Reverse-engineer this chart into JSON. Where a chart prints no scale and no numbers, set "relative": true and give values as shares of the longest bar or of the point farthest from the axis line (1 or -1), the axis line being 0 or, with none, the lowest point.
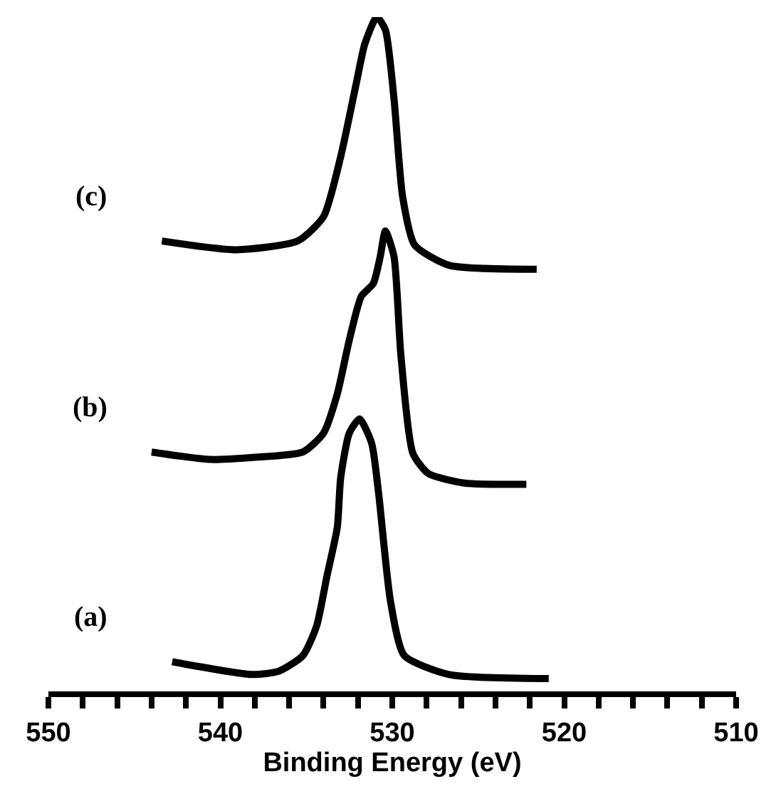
{
  "chart_data": {
    "type": "line",
    "relative": true,
    "xlabel": "Binding Energy (eV)",
    "xlim": [
      550,
      510
    ],
    "xticks": [
      550,
      {
        "value": 548,
        "label": null
      },
      {
        "value": 546,
        "label": null
      },
      {
        "value": 544,
        "label": null
      },
      {
        "value": 542,
        "label": null
      },
      540,
      {
        "value": 538,
        "label": null
      },
      {
        "value": 536,
        "label": null
      },
      {
        "value": 534,
        "label": null
      },
      {
        "value": 532,
        "label": null
      },
      530,
      {
        "value": 528,
        "label": null
      },
      {
        "value": 526,
        "label": null
      },
      {
        "value": 524,
        "label": null
      },
      {
        "value": 522,
        "label": null
      },
      520,
      {
        "value": 518,
        "label": null
      },
      {
        "value": 516,
        "label": null
      },
      {
        "value": 514,
        "label": null
      },
      {
        "value": 512,
        "label": null
      },
      510
    ],
    "tick_labels": "x",
    "legend": false,
    "marker": "none",
    "line_style": "solid",
    "series": [
      {
        "name": "(a)",
        "color": "#000000",
        "x": [
          542.8,
          538.1,
          536.6,
          535.2,
          534.4,
          533.8,
          533.2,
          533.0,
          532.5,
          531.9,
          531.2,
          530.8,
          530.1,
          529.3,
          526.7,
          520.9
        ],
        "values": [
          0.044,
          0.025,
          0.03,
          0.053,
          0.097,
          0.171,
          0.243,
          0.317,
          0.383,
          0.404,
          0.368,
          0.295,
          0.133,
          0.053,
          0.025,
          0.019
        ]
      },
      {
        "name": "(b)",
        "color": "#000000",
        "x": [
          544.0,
          540.6,
          538.1,
          535.2,
          534.0,
          533.2,
          532.5,
          531.8,
          531.1,
          530.7,
          530.4,
          529.9,
          529.5,
          528.8,
          527.9,
          525.8,
          522.2
        ],
        "values": [
          0.355,
          0.344,
          0.347,
          0.355,
          0.383,
          0.441,
          0.521,
          0.586,
          0.605,
          0.645,
          0.683,
          0.645,
          0.499,
          0.353,
          0.323,
          0.309,
          0.307
        ]
      },
      {
        "name": "(c)",
        "color": "#000000",
        "x": [
          543.4,
          539.1,
          535.5,
          534.0,
          533.0,
          532.1,
          531.6,
          530.9,
          530.4,
          529.9,
          529.4,
          528.7,
          526.7,
          521.6
        ],
        "values": [
          0.668,
          0.655,
          0.668,
          0.704,
          0.793,
          0.901,
          0.96,
          1.0,
          0.981,
          0.879,
          0.734,
          0.662,
          0.632,
          0.626
        ]
      }
    ]
  }
}
